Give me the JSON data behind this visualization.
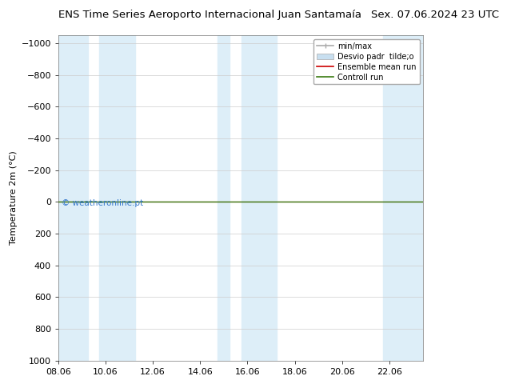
{
  "title_left": "ENS Time Series Aeroporto Internacional Juan Santamaía",
  "title_right": "Sex. 07.06.2024 23 UTC",
  "ylabel": "Temperature 2m (°C)",
  "watermark": "© weatheronline.pt",
  "xlim_start": 8.06,
  "xlim_end": 23.5,
  "ylim_bottom": 1000,
  "ylim_top": -1050,
  "yticks": [
    -1000,
    -800,
    -600,
    -400,
    -200,
    0,
    200,
    400,
    600,
    800,
    1000
  ],
  "xtick_labels": [
    "08.06",
    "10.06",
    "12.06",
    "14.06",
    "16.06",
    "18.06",
    "20.06",
    "22.06"
  ],
  "xtick_positions": [
    8.06,
    10.06,
    12.06,
    14.06,
    16.06,
    18.06,
    20.06,
    22.06
  ],
  "shade_bands": [
    [
      8.06,
      9.3
    ],
    [
      9.8,
      11.3
    ],
    [
      14.8,
      15.3
    ],
    [
      15.8,
      17.3
    ],
    [
      21.8,
      23.5
    ]
  ],
  "shade_color": "#ddeef8",
  "bg_color": "#ffffff",
  "grid_color": "#cccccc",
  "line_color_control": "#3a7a10",
  "line_color_mean": "#cc0000",
  "legend_minmax_color": "#aaaaaa",
  "legend_desvio_color": "#c8dff0",
  "title_fontsize": 9.5,
  "axis_fontsize": 8,
  "tick_fontsize": 8,
  "watermark_color": "#3377cc",
  "watermark_fontsize": 7.5
}
